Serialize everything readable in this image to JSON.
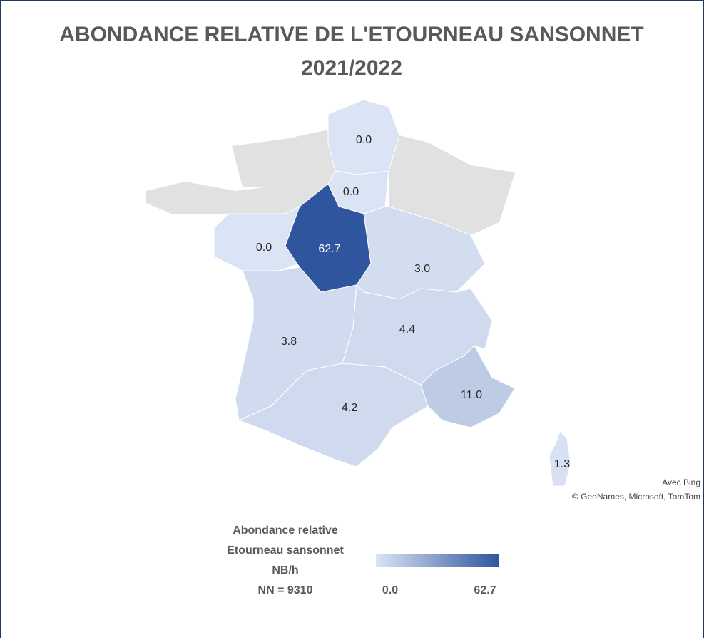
{
  "map": {
    "title": [
      "ABONDANCE RELATIVE DE L'ETOURNEAU SANSONNET",
      "2021/2022"
    ],
    "values": [
      0,
      0,
      0,
      62.7,
      3,
      3.8,
      4.4,
      4.2,
      11,
      1.3
    ],
    "value_labels": [
      "0.0",
      "0.0",
      "0.0",
      "62.7",
      "3.0",
      "3.8",
      "4.4",
      "4.2",
      "11.0",
      "1.3"
    ],
    "color_scale": [
      "#dbe4f4",
      "#2e559e"
    ],
    "no_data_color": "#e1e1e1",
    "legend": {
      "title": [
        "Abondance relative",
        "Etourneau sansonnet",
        "NB/h",
        "NN = 9310"
      ],
      "min": {
        "value": 0,
        "label": "0.0"
      },
      "max": 62.7
    },
    "attribution": [
      "Avec Bing",
      "© GeoNames, Microsoft, TomTom"
    ]
  }
}
